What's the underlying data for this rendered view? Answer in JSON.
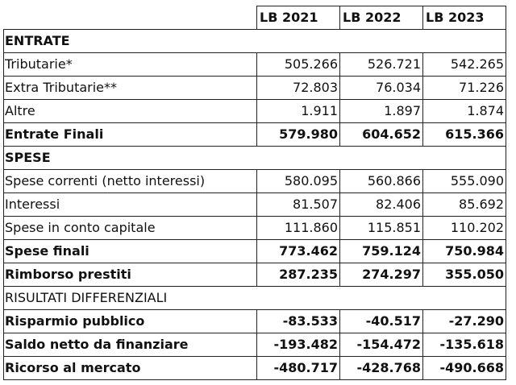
{
  "table": {
    "headers": [
      "LB 2021",
      "LB 2022",
      "LB 2023"
    ],
    "rows": [
      {
        "type": "section",
        "label": "ENTRATE",
        "values": [
          "",
          "",
          ""
        ]
      },
      {
        "type": "normal",
        "label": "Tributarie*",
        "values": [
          "505.266",
          "526.721",
          "542.265"
        ]
      },
      {
        "type": "normal",
        "label": "Extra Tributarie**",
        "values": [
          "72.803",
          "76.034",
          "71.226"
        ]
      },
      {
        "type": "normal",
        "label": "Altre",
        "values": [
          "1.911",
          "1.897",
          "1.874"
        ]
      },
      {
        "type": "bold",
        "label": "Entrate Finali",
        "values": [
          "579.980",
          "604.652",
          "615.366"
        ]
      },
      {
        "type": "section",
        "label": "SPESE",
        "values": [
          "",
          "",
          ""
        ]
      },
      {
        "type": "normal",
        "label": "Spese correnti (netto interessi)",
        "values": [
          "580.095",
          "560.866",
          "555.090"
        ]
      },
      {
        "type": "normal",
        "label": "Interessi",
        "values": [
          "81.507",
          "82.406",
          "85.692"
        ]
      },
      {
        "type": "normal",
        "label": "Spese in conto capitale",
        "values": [
          "111.860",
          "115.851",
          "110.202"
        ]
      },
      {
        "type": "bold",
        "label": "Spese finali",
        "values": [
          "773.462",
          "759.124",
          "750.984"
        ]
      },
      {
        "type": "bold",
        "label": "Rimborso prestiti",
        "values": [
          "287.235",
          "274.297",
          "355.050"
        ]
      },
      {
        "type": "plain-section",
        "label": "RISULTATI DIFFERENZIALI",
        "values": [
          "",
          "",
          ""
        ]
      },
      {
        "type": "bold",
        "label": "Risparmio pubblico",
        "values": [
          "-83.533",
          "-40.517",
          "-27.290"
        ]
      },
      {
        "type": "bold",
        "label": "Saldo netto da finanziare",
        "values": [
          "-193.482",
          "-154.472",
          "-135.618"
        ]
      },
      {
        "type": "bold",
        "label": "Ricorso al mercato",
        "values": [
          "-480.717",
          "-428.768",
          "-490.668"
        ]
      }
    ]
  }
}
